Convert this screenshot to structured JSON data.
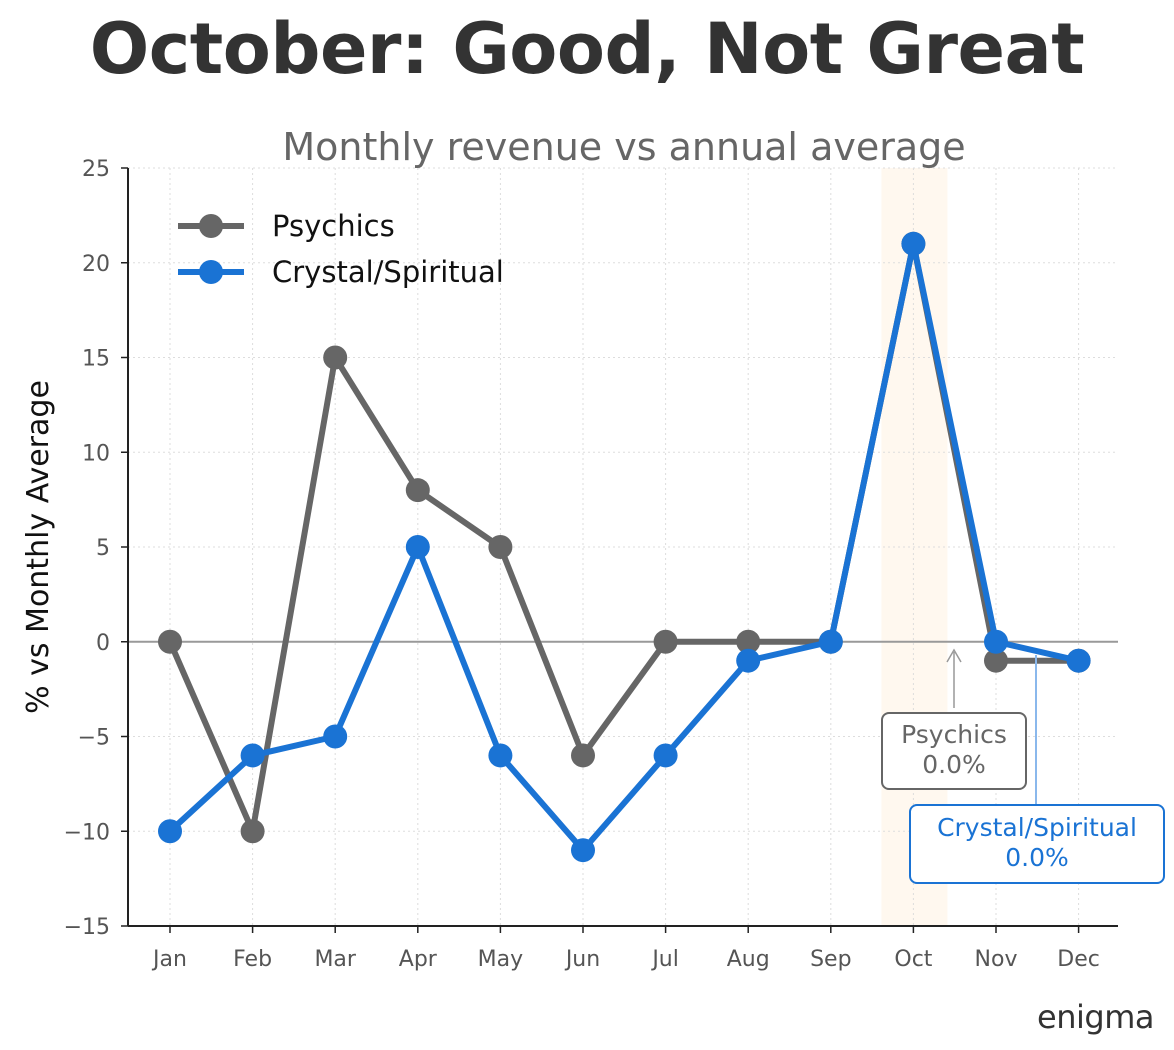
{
  "title": "October: Good, Not Great",
  "brand": "enigma",
  "chart_data": {
    "type": "line",
    "subtitle": "Monthly revenue vs annual average",
    "xlabel": "",
    "ylabel": "% vs Monthly Average",
    "categories": [
      "Jan",
      "Feb",
      "Mar",
      "Apr",
      "May",
      "Jun",
      "Jul",
      "Aug",
      "Sep",
      "Oct",
      "Nov",
      "Dec"
    ],
    "ylim": [
      -15,
      25
    ],
    "yticks": [
      -15,
      -10,
      -5,
      0,
      5,
      10,
      15,
      20,
      25
    ],
    "ytick_labels": [
      "−15",
      "−10",
      "−5",
      "0",
      "5",
      "10",
      "15",
      "20",
      "25"
    ],
    "grid": true,
    "highlight_category": "Oct",
    "series": [
      {
        "name": "Psychics",
        "color": "#666666",
        "values": [
          0,
          -10,
          15,
          8,
          5,
          -6,
          0,
          0,
          0,
          21,
          -1,
          -1
        ]
      },
      {
        "name": "Crystal/Spiritual",
        "color": "#1a73d4",
        "values": [
          -10,
          -6,
          -5,
          5,
          -6,
          -11,
          -6,
          -1,
          0,
          21,
          0,
          -1
        ]
      }
    ],
    "legend": {
      "position": "top-left"
    },
    "annotations": [
      {
        "series": "Psychics",
        "line1": "Psychics",
        "line2": "0.0%",
        "color": "#666666"
      },
      {
        "series": "Crystal/Spiritual",
        "line1": "Crystal/Spiritual",
        "line2": "0.0%",
        "color": "#1a73d4"
      }
    ]
  }
}
